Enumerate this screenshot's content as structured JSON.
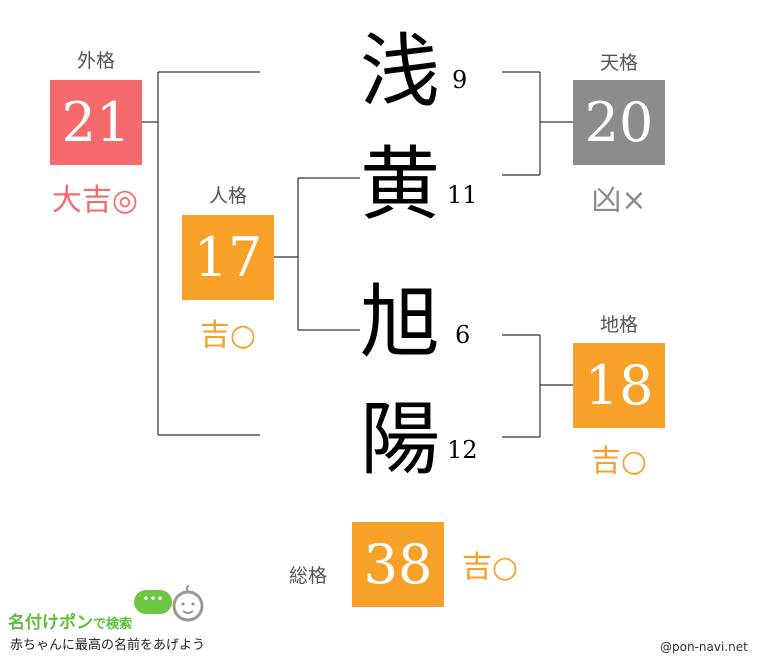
{
  "colors": {
    "good": "#f7a128",
    "great": "#f56a6a",
    "bad": "#8c8c8c"
  },
  "name": [
    {
      "char": "浅",
      "strokes": "9"
    },
    {
      "char": "黄",
      "strokes": "11"
    },
    {
      "char": "旭",
      "strokes": "6"
    },
    {
      "char": "陽",
      "strokes": "12"
    }
  ],
  "gaikaku": {
    "label": "外格",
    "value": "21",
    "result": "大吉◎"
  },
  "jinkaku": {
    "label": "人格",
    "value": "17",
    "result": "吉○"
  },
  "tenkaku": {
    "label": "天格",
    "value": "20",
    "result": "凶×"
  },
  "chikaku": {
    "label": "地格",
    "value": "18",
    "result": "吉○"
  },
  "soukaku": {
    "label": "総格",
    "value": "38",
    "result": "吉○"
  },
  "logo": {
    "title": "名付けポン",
    "suffix": "で検索",
    "tagline": "赤ちゃんに最高の名前をあげよう"
  },
  "credit": "@pon-navi.net"
}
